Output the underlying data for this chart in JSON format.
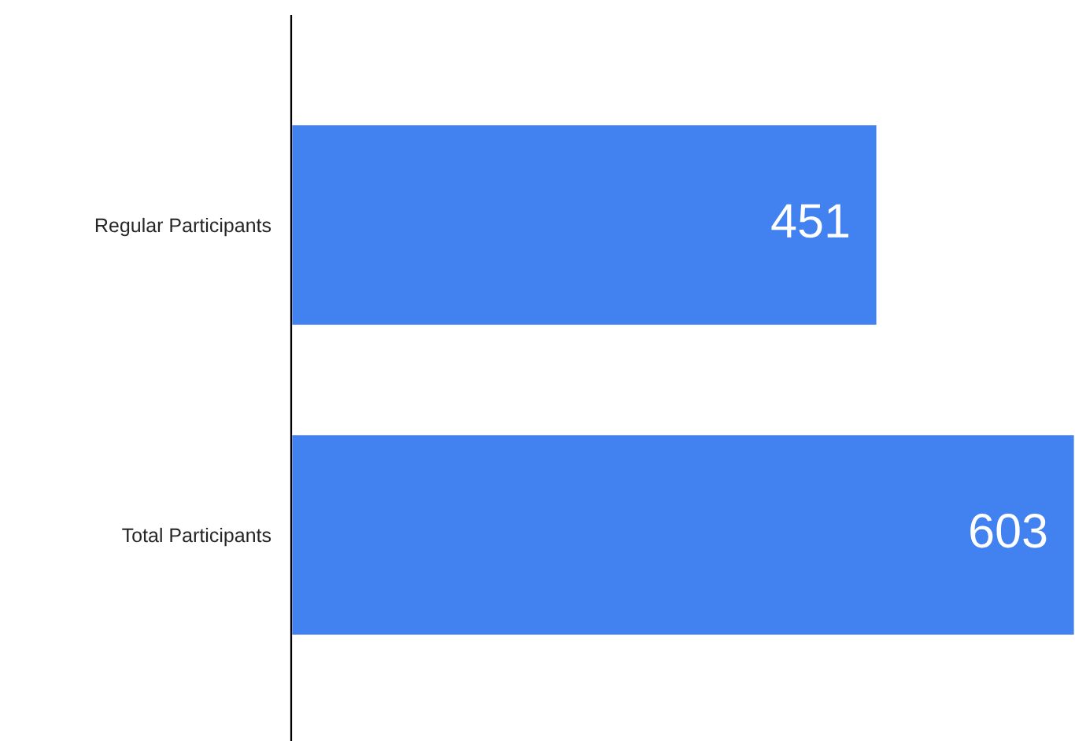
{
  "chart_data": {
    "type": "bar",
    "orientation": "horizontal",
    "categories": [
      "Regular Participants",
      "Total Participants"
    ],
    "values": [
      451,
      603
    ],
    "color": "#4282f0",
    "data_labels": true,
    "grid": false,
    "legend": false
  }
}
